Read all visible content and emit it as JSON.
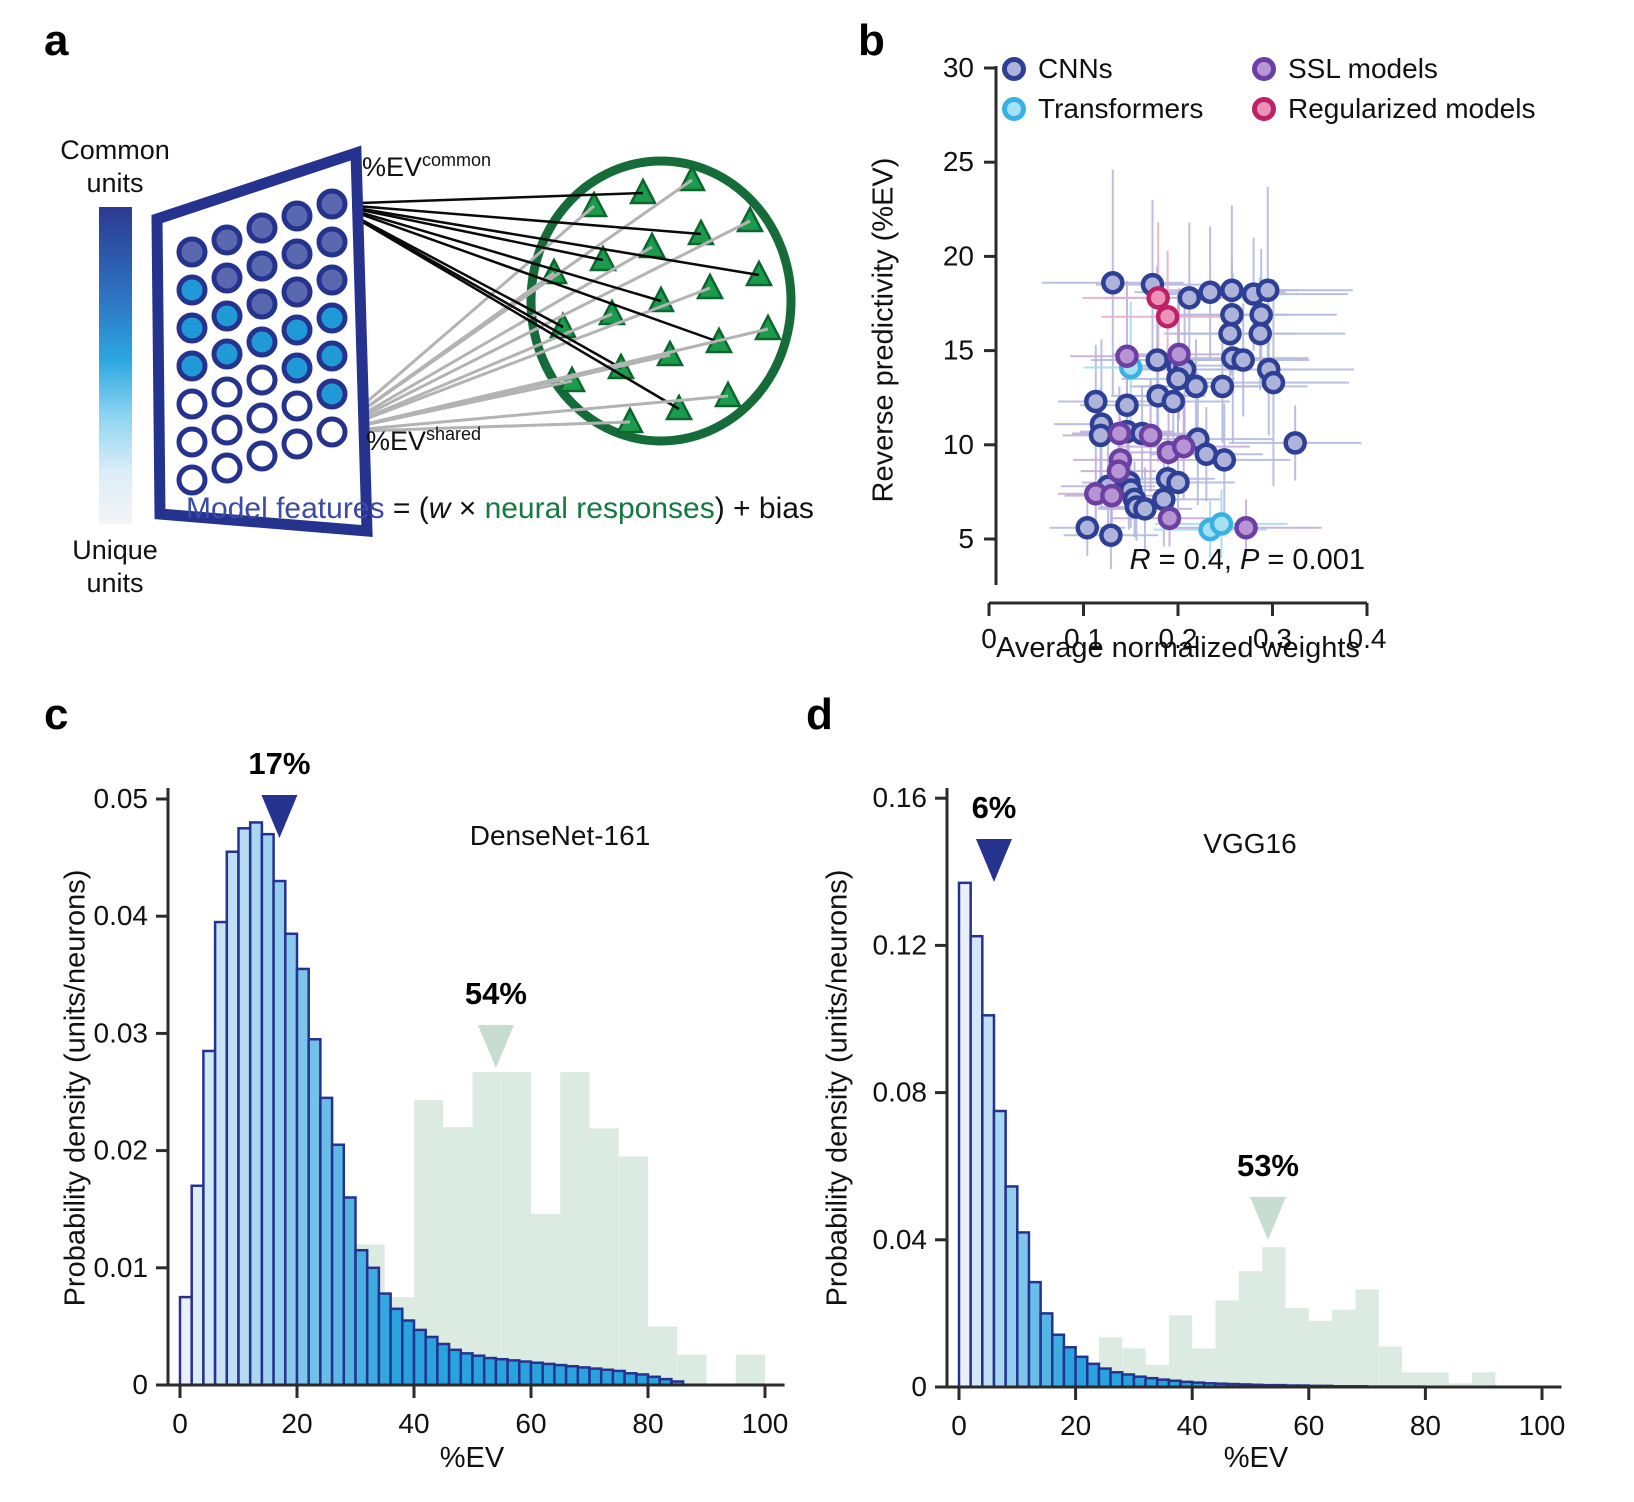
{
  "colors": {
    "navy": "#25338f",
    "bright_blue": "#29a3dd",
    "bar_light": "#e9f0fa",
    "hist_green": "#dcebe1",
    "green_arrow": "#c7ddd0",
    "triangle_green": "#1b9c4d",
    "triangle_stroke": "#0c662e",
    "ellipse_green": "#156c38",
    "grid_dark": "#5a68b0",
    "grid_bright": "#1f9ad6",
    "grid_white": "#ffffff",
    "formula_blue": "#3a4aa5",
    "formula_green": "#157a40",
    "cnn_ring": "#2e3f96",
    "cnn_fill": "#aeb3da",
    "transformer_ring": "#38b2e5",
    "transformer_fill": "#a5e0f5",
    "ssl_ring": "#6b3fa4",
    "ssl_fill": "#b795d2",
    "regularized_ring": "#c02066",
    "regularized_fill": "#ea92b8",
    "err_cnn": "#b3bade",
    "err_transformer": "#a5dcf2",
    "err_ssl": "#c6abdb",
    "err_regularized": "#e6afc9",
    "axis": "#2b2b2b",
    "gray_line": "#b3b3b3",
    "black_line": "#0a0a0a"
  },
  "panels": {
    "a": {
      "letter": "a",
      "colorbar_top": "Common\nunits",
      "colorbar_bottom": "Unique\nunits",
      "ev_common_base": "%EV",
      "ev_common_sup": "common",
      "ev_shared_base": "%EV",
      "ev_shared_sup": "shared",
      "formula": {
        "part1": "Model features",
        "part2": " = (",
        "w": "w",
        "times": " × ",
        "part3": "neural responses",
        "part4": ") + bias"
      },
      "grid_pattern": [
        [
          "d",
          "d",
          "d",
          "d",
          "d"
        ],
        [
          "b",
          "d",
          "d",
          "d",
          "d"
        ],
        [
          "b",
          "b",
          "d",
          "d",
          "d"
        ],
        [
          "b",
          "b",
          "b",
          "b",
          "b"
        ],
        [
          "w",
          "w",
          "w",
          "b",
          "b"
        ],
        [
          "w",
          "w",
          "w",
          "w",
          "b"
        ],
        [
          "w",
          "w",
          "w",
          "w",
          "w"
        ]
      ]
    },
    "b": {
      "letter": "b",
      "annotation": {
        "r": "R",
        "req": " = 0.4, ",
        "p": "P",
        "peq": " = 0.001"
      }
    },
    "c": {
      "letter": "c",
      "model": "DenseNet-161"
    },
    "d": {
      "letter": "d",
      "model": "VGG16"
    }
  },
  "chart_data": [
    {
      "id": "b-scatter",
      "type": "scatter",
      "xlabel": "Average normalized weights",
      "ylabel": "Reverse predictivity (%EV)",
      "xlim": [
        0,
        0.4
      ],
      "xticks": [
        "0",
        "0.1",
        "0.2",
        "0.3",
        "0.4"
      ],
      "ylim": [
        5,
        30
      ],
      "yticks": [
        "5",
        "10",
        "15",
        "20",
        "25",
        "30"
      ],
      "legend": [
        {
          "key": "cnn",
          "label": "CNNs"
        },
        {
          "key": "transformer",
          "label": "Transformers"
        },
        {
          "key": "ssl",
          "label": "SSL models"
        },
        {
          "key": "regularized",
          "label": "Regularized models"
        }
      ],
      "series": [
        {
          "key": "cnn",
          "name": "CNNs",
          "points": [
            [
              0.131,
              18.6,
              0.075,
              6.0
            ],
            [
              0.173,
              18.5,
              0.06,
              4.5
            ],
            [
              0.212,
              17.8,
              0.09,
              4.0
            ],
            [
              0.234,
              18.1,
              0.08,
              3.5
            ],
            [
              0.257,
              18.2,
              0.07,
              4.5
            ],
            [
              0.28,
              18.0,
              0.1,
              3.0
            ],
            [
              0.295,
              18.2,
              0.09,
              5.5
            ],
            [
              0.257,
              16.9,
              0.06,
              3.0
            ],
            [
              0.288,
              16.9,
              0.08,
              3.5
            ],
            [
              0.255,
              15.9,
              0.07,
              2.5
            ],
            [
              0.287,
              15.9,
              0.09,
              3.0
            ],
            [
              0.178,
              14.5,
              0.07,
              5.0
            ],
            [
              0.2,
              14.2,
              0.06,
              4.0
            ],
            [
              0.207,
              14.0,
              0.05,
              3.5
            ],
            [
              0.258,
              14.6,
              0.08,
              4.5
            ],
            [
              0.269,
              14.5,
              0.07,
              3.0
            ],
            [
              0.296,
              14.0,
              0.09,
              3.5
            ],
            [
              0.301,
              13.3,
              0.08,
              5.5
            ],
            [
              0.2,
              13.5,
              0.06,
              3.0
            ],
            [
              0.219,
              13.1,
              0.07,
              2.5
            ],
            [
              0.247,
              13.1,
              0.09,
              3.0
            ],
            [
              0.179,
              12.6,
              0.05,
              3.5
            ],
            [
              0.195,
              12.3,
              0.06,
              2.5
            ],
            [
              0.113,
              12.3,
              0.04,
              3.0
            ],
            [
              0.146,
              12.1,
              0.05,
              2.0
            ],
            [
              0.119,
              11.1,
              0.05,
              4.5
            ],
            [
              0.118,
              10.5,
              0.04,
              2.5
            ],
            [
              0.146,
              10.7,
              0.05,
              3.0
            ],
            [
              0.162,
              10.6,
              0.06,
              2.5
            ],
            [
              0.221,
              10.3,
              0.08,
              3.5
            ],
            [
              0.324,
              10.1,
              0.07,
              2.0
            ],
            [
              0.23,
              9.5,
              0.06,
              2.5
            ],
            [
              0.249,
              9.2,
              0.07,
              3.0
            ],
            [
              0.189,
              8.2,
              0.05,
              2.5
            ],
            [
              0.2,
              8.0,
              0.06,
              2.0
            ],
            [
              0.148,
              8.0,
              0.05,
              2.5
            ],
            [
              0.15,
              7.6,
              0.04,
              2.0
            ],
            [
              0.126,
              7.8,
              0.05,
              3.0
            ],
            [
              0.154,
              7.1,
              0.05,
              2.0
            ],
            [
              0.156,
              6.7,
              0.04,
              1.8
            ],
            [
              0.165,
              6.6,
              0.05,
              2.2
            ],
            [
              0.185,
              7.1,
              0.06,
              2.5
            ],
            [
              0.104,
              5.6,
              0.04,
              1.5
            ],
            [
              0.129,
              5.2,
              0.05,
              1.8
            ]
          ]
        },
        {
          "key": "transformer",
          "name": "Transformers",
          "points": [
            [
              0.15,
              14.1,
              0.05,
              3.5
            ],
            [
              0.234,
              5.5,
              0.06,
              1.5
            ],
            [
              0.246,
              5.8,
              0.07,
              1.8
            ]
          ]
        },
        {
          "key": "ssl",
          "name": "SSL models",
          "points": [
            [
              0.146,
              14.7,
              0.06,
              4.0
            ],
            [
              0.201,
              14.8,
              0.07,
              3.5
            ],
            [
              0.138,
              10.6,
              0.05,
              2.5
            ],
            [
              0.171,
              10.5,
              0.06,
              3.0
            ],
            [
              0.19,
              9.6,
              0.05,
              2.5
            ],
            [
              0.206,
              9.9,
              0.07,
              2.8
            ],
            [
              0.139,
              9.2,
              0.05,
              2.2
            ],
            [
              0.137,
              8.6,
              0.04,
              2.0
            ],
            [
              0.113,
              7.4,
              0.04,
              2.0
            ],
            [
              0.13,
              7.3,
              0.05,
              1.8
            ],
            [
              0.191,
              6.1,
              0.06,
              1.5
            ],
            [
              0.272,
              5.6,
              0.08,
              1.5
            ]
          ]
        },
        {
          "key": "regularized",
          "name": "Regularized models",
          "points": [
            [
              0.179,
              17.8,
              0.08,
              4.0
            ],
            [
              0.189,
              16.8,
              0.07,
              3.5
            ]
          ]
        }
      ]
    },
    {
      "id": "c-hist",
      "type": "histogram",
      "model": "DenseNet-161",
      "xlabel": "%EV",
      "ylabel": "Probability density (units/neurons)",
      "xlim": [
        0,
        100
      ],
      "xticks": [
        "0",
        "20",
        "40",
        "60",
        "80",
        "100"
      ],
      "ylim": [
        0,
        0.05
      ],
      "yticks": [
        "0",
        "0.01",
        "0.02",
        "0.03",
        "0.04",
        "0.05"
      ],
      "blue": {
        "bin_start": 0,
        "bin_width": 2,
        "values": [
          0.0075,
          0.017,
          0.0285,
          0.0395,
          0.0455,
          0.0475,
          0.048,
          0.047,
          0.043,
          0.0385,
          0.0355,
          0.0295,
          0.0245,
          0.0205,
          0.016,
          0.0115,
          0.01,
          0.0078,
          0.0065,
          0.0055,
          0.0047,
          0.0041,
          0.0035,
          0.003,
          0.0027,
          0.0025,
          0.0023,
          0.0022,
          0.0021,
          0.002,
          0.0019,
          0.0018,
          0.0017,
          0.0016,
          0.0015,
          0.0014,
          0.0013,
          0.0012,
          0.001,
          0.0009,
          0.0007,
          0.0005,
          0.0003
        ]
      },
      "green": {
        "bin_start": 30,
        "bin_width": 5,
        "values": [
          0.012,
          0.0075,
          0.0243,
          0.022,
          0.0267,
          0.0267,
          0.0146,
          0.0267,
          0.0219,
          0.0195,
          0.005,
          0.0026,
          0,
          0.0026
        ]
      },
      "peak_blue": {
        "label": "17%",
        "x": 17
      },
      "peak_green": {
        "label": "54%",
        "x": 54
      }
    },
    {
      "id": "d-hist",
      "type": "histogram",
      "model": "VGG16",
      "xlabel": "%EV",
      "ylabel": "Probability density (units/neurons)",
      "xlim": [
        0,
        100
      ],
      "xticks": [
        "0",
        "20",
        "40",
        "60",
        "80",
        "100"
      ],
      "ylim": [
        0,
        0.16
      ],
      "yticks": [
        "0",
        "0.04",
        "0.08",
        "0.12",
        "0.16"
      ],
      "blue": {
        "bin_start": 0,
        "bin_width": 2,
        "values": [
          0.137,
          0.1225,
          0.101,
          0.075,
          0.0545,
          0.042,
          0.0285,
          0.02,
          0.0142,
          0.0108,
          0.0082,
          0.0063,
          0.005,
          0.004,
          0.0034,
          0.0028,
          0.0024,
          0.002,
          0.0017,
          0.0014,
          0.0012,
          0.001,
          0.0009,
          0.0008,
          0.0007,
          0.0006,
          0.0005,
          0.0005,
          0.0004,
          0.0004,
          0.0003,
          0.0003,
          0.0002,
          0.0002,
          0.0002,
          0.0001,
          0.0001,
          0.0001,
          0.0001,
          0.0001
        ]
      },
      "green": {
        "bin_start": 20,
        "bin_width": 4,
        "values": [
          0.006,
          0.0135,
          0.0105,
          0.006,
          0.0195,
          0.0105,
          0.0235,
          0.0315,
          0.038,
          0.0215,
          0.018,
          0.021,
          0.0265,
          0.011,
          0.004,
          0.004,
          0.001,
          0.004
        ]
      },
      "peak_blue": {
        "label": "6%",
        "x": 6
      },
      "peak_green": {
        "label": "53%",
        "x": 53
      }
    }
  ]
}
